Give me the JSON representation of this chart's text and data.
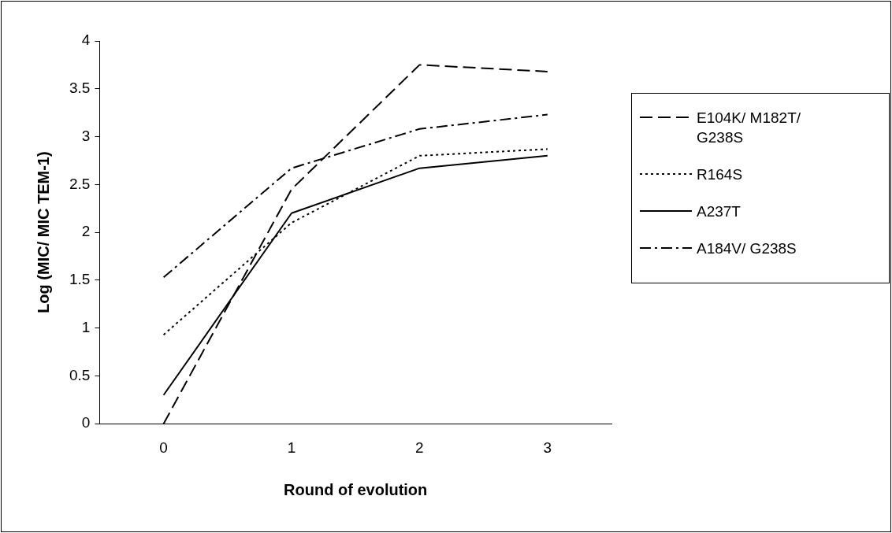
{
  "chart_data": {
    "type": "line",
    "xlabel": "Round of evolution",
    "ylabel": "Log (MIC/ MIC TEM-1)",
    "categories": [
      "0",
      "1",
      "2",
      "3"
    ],
    "ylim": [
      0,
      4
    ],
    "yticks": [
      0,
      0.5,
      1,
      1.5,
      2,
      2.5,
      3,
      3.5,
      4
    ],
    "grid": false,
    "legend": "right",
    "marker": "none",
    "series": [
      {
        "name": "E104K/ M182T/ G238S",
        "color": "#000000",
        "line_style": "dashed",
        "values": [
          0,
          2.45,
          3.75,
          3.68
        ]
      },
      {
        "name": "R164S",
        "color": "#000000",
        "line_style": "dotted",
        "values": [
          0.93,
          2.1,
          2.8,
          2.87
        ]
      },
      {
        "name": "A237T",
        "color": "#000000",
        "line_style": "solid",
        "values": [
          0.3,
          2.2,
          2.67,
          2.8
        ]
      },
      {
        "name": "A184V/ G238S",
        "color": "#000000",
        "line_style": "dashdot",
        "values": [
          1.53,
          2.67,
          3.08,
          3.23
        ]
      }
    ]
  }
}
